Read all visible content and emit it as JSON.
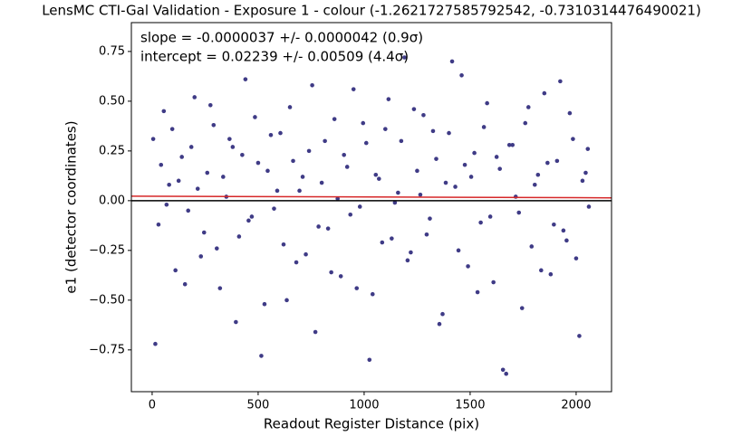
{
  "chart_data": {
    "type": "scatter",
    "title": "LensMC CTI-Gal Validation - Exposure 1 - colour (-1.2621727585792542, -0.7310314476490021)",
    "x_label": "Readout Register Distance (pix)",
    "y_label": "e1 (detector coordinates)",
    "annotations": [
      "slope = -0.0000037 +/- 0.0000042 (0.9σ)",
      "intercept = 0.02239 +/- 0.00509 (4.4σ)"
    ],
    "fit": {
      "slope": -3.7e-06,
      "intercept": 0.02239,
      "color": "#d62728"
    },
    "hline": {
      "value": 0,
      "color": "#000000"
    },
    "xlim": [
      -98,
      2167
    ],
    "ylim": [
      -0.96,
      0.895
    ],
    "xticks": [
      0,
      500,
      1000,
      1500,
      2000
    ],
    "yticks": [
      {
        "value": -0.75,
        "label": "−0.75"
      },
      {
        "value": -0.5,
        "label": "−0.50"
      },
      {
        "value": -0.25,
        "label": "−0.25"
      },
      {
        "value": 0,
        "label": "0.00"
      },
      {
        "value": 0.25,
        "label": "0.25"
      },
      {
        "value": 0.5,
        "label": "0.50"
      },
      {
        "value": 0.75,
        "label": "0.75"
      }
    ],
    "series": [
      {
        "color": "#3f3b86",
        "x": [
          5,
          30,
          55,
          80,
          110,
          140,
          170,
          200,
          230,
          260,
          290,
          320,
          350,
          380,
          410,
          440,
          470,
          500,
          530,
          560,
          590,
          620,
          650,
          680,
          710,
          740,
          770,
          800,
          830,
          860,
          890,
          920,
          950,
          980,
          1010,
          1040,
          1070,
          1100,
          1130,
          1160,
          1190,
          1220,
          1250,
          1280,
          1310,
          1340,
          1370,
          1400,
          1430,
          1460,
          1490,
          1520,
          1550,
          1580,
          1610,
          1640,
          1670,
          1700,
          1730,
          1760,
          1790,
          1820,
          1850,
          1880,
          1910,
          1940,
          1970,
          2000,
          2030,
          2055,
          15,
          42,
          68,
          95,
          125,
          155,
          185,
          215,
          245,
          275,
          305,
          335,
          365,
          395,
          425,
          455,
          485,
          515,
          545,
          575,
          605,
          635,
          665,
          695,
          725,
          755,
          785,
          815,
          845,
          875,
          905,
          935,
          965,
          995,
          1025,
          1055,
          1085,
          1115,
          1145,
          1175,
          1205,
          1235,
          1265,
          1295,
          1325,
          1355,
          1385,
          1415,
          1445,
          1475,
          1505,
          1535,
          1565,
          1595,
          1625,
          1655,
          1685,
          1715,
          1745,
          1775,
          1805,
          1835,
          1865,
          1895,
          1925,
          1955,
          1985,
          2015,
          2045,
          2060
        ],
        "values": [
          0.31,
          -0.12,
          0.45,
          0.08,
          -0.35,
          0.22,
          -0.05,
          0.52,
          -0.28,
          0.14,
          0.38,
          -0.44,
          0.02,
          0.27,
          -0.18,
          0.61,
          -0.08,
          0.19,
          -0.52,
          0.33,
          0.05,
          -0.22,
          0.47,
          -0.31,
          0.12,
          0.25,
          -0.66,
          0.09,
          -0.14,
          0.41,
          -0.38,
          0.17,
          0.56,
          -0.03,
          0.29,
          -0.47,
          0.11,
          0.36,
          -0.19,
          0.04,
          0.72,
          -0.26,
          0.15,
          0.43,
          -0.09,
          0.21,
          -0.57,
          0.34,
          0.07,
          0.63,
          -0.33,
          0.24,
          -0.11,
          0.49,
          -0.41,
          0.16,
          -0.87,
          0.28,
          -0.06,
          0.39,
          -0.23,
          0.13,
          0.54,
          -0.37,
          0.2,
          -0.15,
          0.44,
          -0.29,
          0.1,
          0.26,
          -0.72,
          0.18,
          -0.02,
          0.36,
          0.1,
          -0.42,
          0.27,
          0.06,
          -0.16,
          0.48,
          -0.24,
          0.12,
          0.31,
          -0.61,
          0.23,
          -0.1,
          0.42,
          -0.78,
          0.15,
          -0.04,
          0.34,
          -0.5,
          0.2,
          0.05,
          -0.27,
          0.58,
          -0.13,
          0.3,
          -0.36,
          0.01,
          0.23,
          -0.07,
          -0.44,
          0.39,
          -0.8,
          0.13,
          -0.21,
          0.51,
          -0.01,
          0.3,
          -0.3,
          0.46,
          0.03,
          -0.17,
          0.35,
          -0.62,
          0.09,
          0.7,
          -0.25,
          0.18,
          0.12,
          -0.46,
          0.37,
          -0.08,
          0.22,
          -0.85,
          0.28,
          0.02,
          -0.54,
          0.47,
          0.08,
          -0.35,
          0.19,
          -0.12,
          0.6,
          -0.2,
          0.31,
          -0.68,
          0.14,
          -0.03
        ]
      }
    ]
  }
}
